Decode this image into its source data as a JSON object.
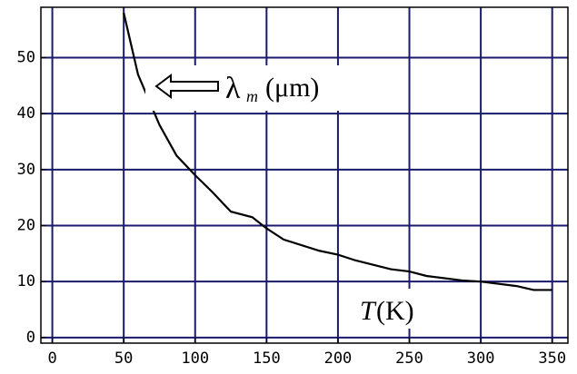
{
  "chart_data": {
    "type": "line",
    "x_label": {
      "symbol": "T",
      "unit": "(K)"
    },
    "y_label": {
      "symbol": "λ",
      "subscript": "m",
      "unit": "(μm)"
    },
    "x": [
      50,
      60,
      75,
      87,
      100,
      112,
      125,
      140,
      150,
      162,
      187,
      200,
      212,
      237,
      250,
      262,
      287,
      300,
      325,
      337,
      350
    ],
    "series": [
      {
        "color": "#000000",
        "values": [
          58,
          47,
          38,
          32.5,
          29,
          26,
          22.5,
          21.5,
          19.5,
          17.5,
          15.5,
          14.8,
          13.8,
          12.2,
          11.8,
          11,
          10.2,
          10,
          9.2,
          8.5,
          8.5
        ]
      }
    ],
    "xlim": [
      -8,
      361
    ],
    "ylim": [
      -1,
      59
    ],
    "xticks": [
      0,
      50,
      100,
      150,
      200,
      250,
      300,
      350
    ],
    "yticks": [
      0,
      10,
      20,
      30,
      40,
      50
    ],
    "grid": true,
    "grid_color": "#1a1a6e"
  }
}
